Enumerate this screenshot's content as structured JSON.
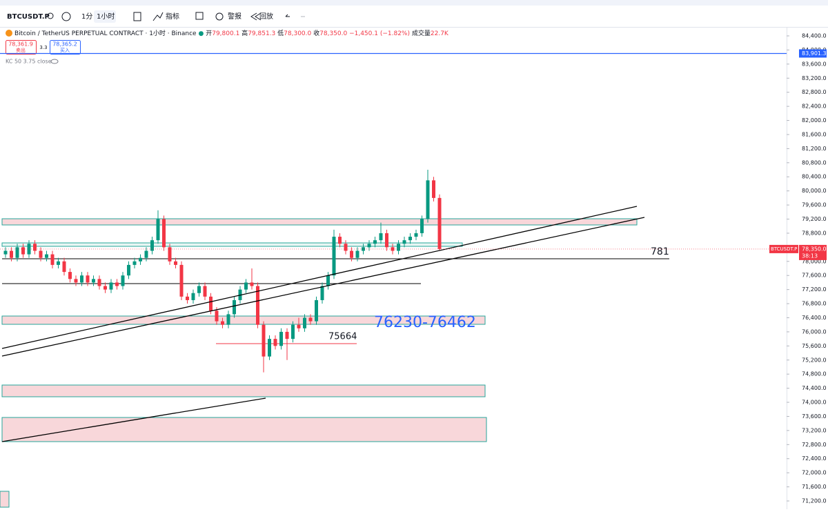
{
  "toolbar": {
    "symbol": "BTCUSDT.P",
    "interval_1": "1分",
    "interval_2": "1小时",
    "indicators": "指标",
    "alert": "警报",
    "replay": "回放"
  },
  "legend": {
    "title": "Bitcoin / TetherUS PERPETUAL CONTRACT · 1小时 · Binance",
    "open_label": "开",
    "open": "79,800.1",
    "high_label": "高",
    "high": "79,851.3",
    "low_label": "低",
    "low": "78,300.0",
    "close_label": "收",
    "close": "78,350.0",
    "change": "−1,450.1 (−1.82%)",
    "volume_label": "成交量",
    "volume": "22.7K",
    "sell_price": "78,361.9",
    "sell": "卖出",
    "spread": "3.3",
    "buy_price": "78,365.2",
    "buy": "买入",
    "indicator": "KC 50 3.75 close"
  },
  "chart": {
    "ylim": [
      71200,
      84400
    ],
    "yticks": [
      {
        "value": 84400,
        "label": "84,400.0"
      },
      {
        "value": 84000,
        "label": "84,000.0"
      },
      {
        "value": 83600,
        "label": "83,600.0"
      },
      {
        "value": 83200,
        "label": "83,200.0"
      },
      {
        "value": 82800,
        "label": "82,800.0"
      },
      {
        "value": 82400,
        "label": "82,400.0"
      },
      {
        "value": 82000,
        "label": "82,000.0"
      },
      {
        "value": 81600,
        "label": "81,600.0"
      },
      {
        "value": 81200,
        "label": "81,200.0"
      },
      {
        "value": 80800,
        "label": "80,800.0"
      },
      {
        "value": 80400,
        "label": "80,400.0"
      },
      {
        "value": 80000,
        "label": "80,000.0"
      },
      {
        "value": 79600,
        "label": "79,600.0"
      },
      {
        "value": 79200,
        "label": "79,200.0"
      },
      {
        "value": 78800,
        "label": "78,800.0"
      },
      {
        "value": 78000,
        "label": "78,000.0"
      },
      {
        "value": 77600,
        "label": "77,600.0"
      },
      {
        "value": 77200,
        "label": "77,200.0"
      },
      {
        "value": 76800,
        "label": "76,800.0"
      },
      {
        "value": 76400,
        "label": "76,400.0"
      },
      {
        "value": 76000,
        "label": "76,000.0"
      },
      {
        "value": 75600,
        "label": "75,600.0"
      },
      {
        "value": 75200,
        "label": "75,200.0"
      },
      {
        "value": 74800,
        "label": "74,800.0"
      },
      {
        "value": 74400,
        "label": "74,400.0"
      },
      {
        "value": 74000,
        "label": "74,000.0"
      },
      {
        "value": 73600,
        "label": "73,600.0"
      },
      {
        "value": 73200,
        "label": "73,200.0"
      },
      {
        "value": 72800,
        "label": "72,800.0"
      },
      {
        "value": 72400,
        "label": "72,400.0"
      },
      {
        "value": 72000,
        "label": "72,000.0"
      },
      {
        "value": 71600,
        "label": "71,600.0"
      },
      {
        "value": 71200,
        "label": "71,200.0"
      }
    ],
    "hline_price": {
      "value": 83901.3,
      "label": "83,901.3"
    },
    "current_price": {
      "value": 78350,
      "label": "78,350.0"
    },
    "current_symbol": "BTCUSDT.P",
    "countdown": "38:13",
    "candles": [
      [
        78200,
        78400,
        78100,
        78300
      ],
      [
        78300,
        78400,
        78000,
        78100
      ],
      [
        78100,
        78500,
        78000,
        78400
      ],
      [
        78400,
        78500,
        78100,
        78200
      ],
      [
        78200,
        78600,
        78100,
        78500
      ],
      [
        78500,
        78600,
        78200,
        78300
      ],
      [
        78300,
        78400,
        78000,
        78100
      ],
      [
        78100,
        78300,
        78000,
        78200
      ],
      [
        78200,
        78300,
        77800,
        77900
      ],
      [
        77900,
        78100,
        77800,
        78000
      ],
      [
        78000,
        78100,
        77600,
        77700
      ],
      [
        77700,
        77800,
        77400,
        77500
      ],
      [
        77500,
        77600,
        77300,
        77400
      ],
      [
        77400,
        77700,
        77300,
        77600
      ],
      [
        77600,
        77700,
        77300,
        77400
      ],
      [
        77400,
        77600,
        77300,
        77500
      ],
      [
        77500,
        77600,
        77200,
        77300
      ],
      [
        77300,
        77400,
        77100,
        77200
      ],
      [
        77200,
        77500,
        77100,
        77400
      ],
      [
        77400,
        77500,
        77200,
        77300
      ],
      [
        77300,
        77700,
        77200,
        77600
      ],
      [
        77600,
        78000,
        77500,
        77900
      ],
      [
        77900,
        78100,
        77800,
        78000
      ],
      [
        78000,
        78200,
        77900,
        78100
      ],
      [
        78100,
        78400,
        78000,
        78300
      ],
      [
        78300,
        78700,
        78200,
        78600
      ],
      [
        78600,
        79450,
        78500,
        79200
      ],
      [
        79200,
        79300,
        78300,
        78400
      ],
      [
        78400,
        78500,
        77900,
        78000
      ],
      [
        78000,
        78100,
        77800,
        77900
      ],
      [
        77900,
        78000,
        76900,
        77000
      ],
      [
        77000,
        77100,
        76800,
        76900
      ],
      [
        76900,
        77200,
        76800,
        77100
      ],
      [
        77100,
        77400,
        77000,
        77300
      ],
      [
        77300,
        77400,
        76900,
        77000
      ],
      [
        77000,
        77100,
        76500,
        76600
      ],
      [
        76600,
        76700,
        76200,
        76300
      ],
      [
        76300,
        76400,
        76100,
        76200
      ],
      [
        76200,
        76600,
        76100,
        76500
      ],
      [
        76500,
        77000,
        76400,
        76900
      ],
      [
        76900,
        77300,
        76800,
        77200
      ],
      [
        77200,
        77500,
        77100,
        77400
      ],
      [
        77400,
        77800,
        77200,
        77300
      ],
      [
        77300,
        77400,
        76100,
        76200
      ],
      [
        76200,
        76300,
        74850,
        75300
      ],
      [
        75300,
        75900,
        75200,
        75800
      ],
      [
        75800,
        75900,
        75500,
        75600
      ],
      [
        75600,
        76100,
        75500,
        76000
      ],
      [
        76000,
        76100,
        75200,
        75800
      ],
      [
        75800,
        76300,
        75700,
        76200
      ],
      [
        76200,
        76400,
        76000,
        76100
      ],
      [
        76100,
        76500,
        76000,
        76400
      ],
      [
        76400,
        76500,
        76200,
        76300
      ],
      [
        76300,
        77000,
        76200,
        76900
      ],
      [
        76900,
        77400,
        76800,
        77300
      ],
      [
        77300,
        77700,
        77200,
        77600
      ],
      [
        77600,
        78900,
        77500,
        78700
      ],
      [
        78700,
        78800,
        78400,
        78500
      ],
      [
        78500,
        78600,
        78200,
        78300
      ],
      [
        78300,
        78400,
        78000,
        78100
      ],
      [
        78100,
        78400,
        78000,
        78300
      ],
      [
        78300,
        78500,
        78200,
        78400
      ],
      [
        78400,
        78600,
        78300,
        78500
      ],
      [
        78500,
        78700,
        78400,
        78600
      ],
      [
        78600,
        79100,
        78500,
        78800
      ],
      [
        78800,
        78900,
        78300,
        78400
      ],
      [
        78400,
        78500,
        78200,
        78300
      ],
      [
        78300,
        78600,
        78200,
        78500
      ],
      [
        78500,
        78700,
        78400,
        78600
      ],
      [
        78600,
        78800,
        78500,
        78700
      ],
      [
        78700,
        78900,
        78600,
        78800
      ],
      [
        78800,
        79300,
        78700,
        79200
      ],
      [
        79200,
        80600,
        79100,
        80300
      ],
      [
        80300,
        80400,
        79700,
        79800
      ],
      [
        79800,
        79900,
        78300,
        78350
      ]
    ],
    "annotations": {
      "level_781": "781",
      "level_75664": "75664",
      "zone": "76230-76462"
    }
  }
}
